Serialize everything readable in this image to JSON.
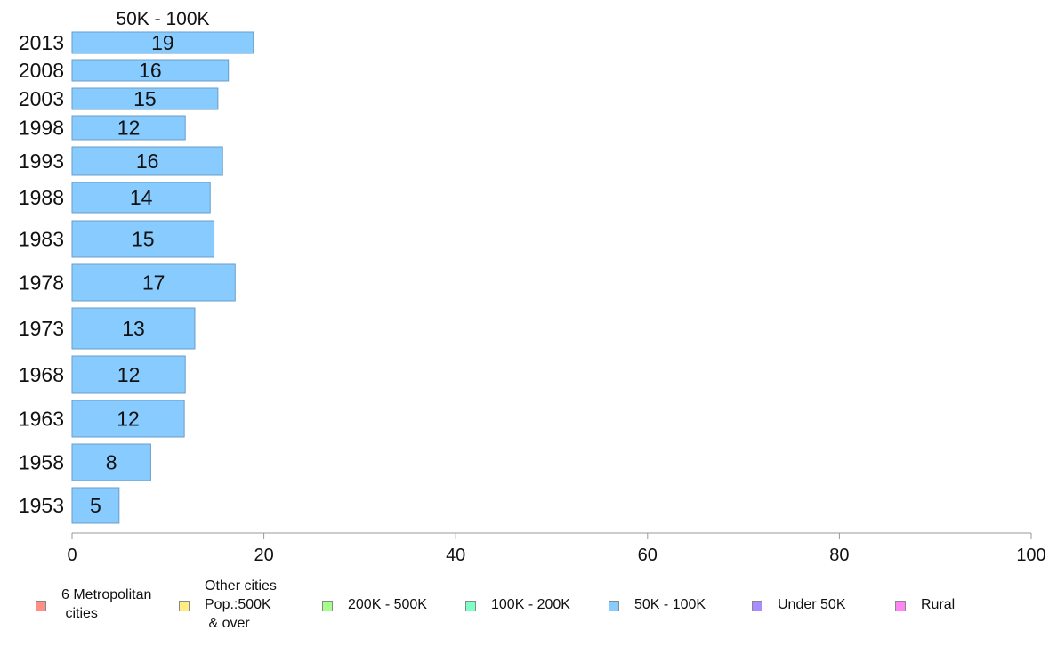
{
  "chart_data": {
    "type": "bar",
    "orientation": "horizontal",
    "title": "50K - 100K",
    "categories": [
      "2013",
      "2008",
      "2003",
      "1998",
      "1993",
      "1988",
      "1983",
      "1978",
      "1973",
      "1968",
      "1963",
      "1958",
      "1953"
    ],
    "values": [
      19,
      16,
      15,
      12,
      16,
      14,
      15,
      17,
      13,
      12,
      12,
      8,
      5
    ],
    "value_labels": [
      "19",
      "16",
      "15",
      "12",
      "16",
      "14",
      "15",
      "17",
      "13",
      "12",
      "12",
      "8",
      "5"
    ],
    "precise_values": [
      18.9,
      16.3,
      15.2,
      11.8,
      15.7,
      14.4,
      14.8,
      17.0,
      12.8,
      11.8,
      11.7,
      8.2,
      4.9
    ],
    "xlim": [
      0,
      100
    ],
    "x_ticks": [
      0,
      20,
      40,
      60,
      80,
      100
    ],
    "x_tick_labels": [
      "0",
      "20",
      "40",
      "60",
      "80",
      "100"
    ],
    "bar_color": "#87cbff",
    "bar_edge_color": "#6a9cc8",
    "grid": false,
    "legend_position": "bottom",
    "legend": [
      {
        "label": "6 Metropolitan\n cities",
        "color": "#ff8f86"
      },
      {
        "label": "Other cities\nPop.:500K\n & over",
        "color": "#ffec82"
      },
      {
        "label": "200K - 500K",
        "color": "#a6ff8c"
      },
      {
        "label": "100K - 200K",
        "color": "#7effc6"
      },
      {
        "label": "50K - 100K",
        "color": "#87cbff"
      },
      {
        "label": "Under 50K",
        "color": "#a98cff"
      },
      {
        "label": "Rural",
        "color": "#ff86f2"
      }
    ]
  }
}
